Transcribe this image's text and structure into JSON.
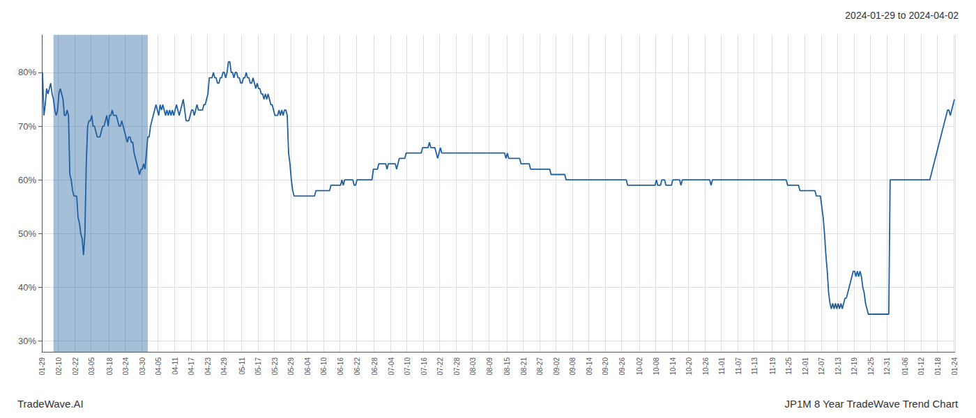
{
  "chart_data": {
    "type": "line",
    "title": "JP1M 8 Year TradeWave Trend Chart",
    "subtitle": "2024-01-29 to 2024-04-02",
    "annotations": [
      "TradeWave.AI"
    ],
    "color": "#2060a0",
    "grid": true,
    "ylim": [
      28,
      87
    ],
    "yticks": [
      {
        "value": 30,
        "label": "30%"
      },
      {
        "value": 40,
        "label": "40%"
      },
      {
        "value": 50,
        "label": "50%"
      },
      {
        "value": 60,
        "label": "60%"
      },
      {
        "value": 70,
        "label": "70%"
      },
      {
        "value": 80,
        "label": "80%"
      }
    ],
    "categories": [
      "01-29",
      null,
      null,
      null,
      null,
      null,
      null,
      null,
      null,
      null,
      null,
      null,
      "02-10",
      null,
      null,
      null,
      null,
      null,
      null,
      null,
      null,
      null,
      null,
      null,
      "02-22",
      null,
      null,
      null,
      null,
      null,
      null,
      null,
      null,
      null,
      null,
      null,
      "03-05",
      null,
      null,
      null,
      null,
      null,
      null,
      null,
      null,
      null,
      null,
      null,
      null,
      "03-18",
      null,
      null,
      null,
      null,
      null,
      null,
      null,
      null,
      null,
      null,
      null,
      "03-24",
      null,
      null,
      null,
      null,
      null,
      null,
      null,
      null,
      null,
      null,
      null,
      "03-30",
      null,
      null,
      null,
      null,
      null,
      null,
      null,
      null,
      null,
      null,
      null,
      "04-05",
      null,
      null,
      null,
      null,
      null,
      null,
      null,
      null,
      null,
      null,
      null,
      "04-11",
      null,
      null,
      null,
      null,
      null,
      null,
      null,
      null,
      null,
      null,
      null,
      "04-17",
      null,
      null,
      null,
      null,
      null,
      null,
      null,
      null,
      null,
      null,
      null,
      "04-23",
      null,
      null,
      null,
      null,
      null,
      null,
      null,
      null,
      null,
      null,
      null,
      "04-29",
      null,
      null,
      null,
      null,
      null,
      null,
      null,
      null,
      null,
      null,
      null,
      null,
      "05-11",
      null,
      null,
      null,
      null,
      null,
      null,
      null,
      null,
      null,
      null,
      null,
      "05-17",
      null,
      null,
      null,
      null,
      null,
      null,
      null,
      null,
      null,
      null,
      null,
      "05-23",
      null,
      null,
      null,
      null,
      null,
      null,
      null,
      null,
      null,
      null,
      null,
      "05-29",
      null,
      null,
      null,
      null,
      null,
      null,
      null,
      null,
      null,
      null,
      null,
      "06-04",
      null,
      null,
      null,
      null,
      null,
      null,
      null,
      null,
      null,
      null,
      null,
      "06-10",
      null,
      null,
      null,
      null,
      null,
      null,
      null,
      null,
      null,
      null,
      null,
      "06-16",
      null,
      null,
      null,
      null,
      null,
      null,
      null,
      null,
      null,
      null,
      null,
      "06-22",
      null,
      null,
      null,
      null,
      null,
      null,
      null,
      null,
      null,
      null,
      null,
      null,
      "06-28",
      null,
      null,
      null,
      null,
      null,
      null,
      null,
      null,
      null,
      null,
      null,
      "07-04",
      null,
      null,
      null,
      null,
      null,
      null,
      null,
      null,
      null,
      null,
      null,
      "07-10",
      null,
      null,
      null,
      null,
      null,
      null,
      null,
      null,
      null,
      null,
      null,
      "07-16",
      null,
      null,
      null,
      null,
      null,
      null,
      null,
      null,
      null,
      null,
      null,
      "07-22",
      null,
      null,
      null,
      null,
      null,
      null,
      null,
      null,
      null,
      null,
      null,
      "07-28",
      null,
      null,
      null,
      null,
      null,
      null,
      null,
      null,
      null,
      null,
      null,
      "08-03",
      null,
      null,
      null,
      null,
      null,
      null,
      null,
      null,
      null,
      null,
      null,
      "08-09",
      null,
      null,
      null,
      null,
      null,
      null,
      null,
      null,
      null,
      null,
      null,
      null,
      "08-15",
      null,
      null,
      null,
      null,
      null,
      null,
      null,
      null,
      null,
      null,
      null,
      "08-21",
      null,
      null,
      null,
      null,
      null,
      null,
      null,
      null,
      null,
      null,
      null,
      "08-27",
      null,
      null,
      null,
      null,
      null,
      null,
      null,
      null,
      null,
      null,
      null,
      "09-02",
      null,
      null,
      null,
      null,
      null,
      null,
      null,
      null,
      null,
      null,
      null,
      "09-08",
      null,
      null,
      null,
      null,
      null,
      null,
      null,
      null,
      null,
      null,
      null,
      "09-14",
      null,
      null,
      null,
      null,
      null,
      null,
      null,
      null,
      null,
      null,
      null,
      "09-20",
      null,
      null,
      null,
      null,
      null,
      null,
      null,
      null,
      null,
      null,
      null,
      "09-26",
      null,
      null,
      null,
      null,
      null,
      null,
      null,
      null,
      null,
      null,
      null,
      null,
      "10-02",
      null,
      null,
      null,
      null,
      null,
      null,
      null,
      null,
      null,
      null,
      null,
      "10-08",
      null,
      null,
      null,
      null,
      null,
      null,
      null,
      null,
      null,
      null,
      null,
      "10-14",
      null,
      null,
      null,
      null,
      null,
      null,
      null,
      null,
      null,
      null,
      null,
      "10-20",
      null,
      null,
      null,
      null,
      null,
      null,
      null,
      null,
      null,
      null,
      null,
      "10-26",
      null,
      null,
      null,
      null,
      null,
      null,
      null,
      null,
      null,
      null,
      null,
      "11-01",
      null,
      null,
      null,
      null,
      null,
      null,
      null,
      null,
      null,
      null,
      null,
      "11-07",
      null,
      null,
      null,
      null,
      null,
      null,
      null,
      null,
      null,
      null,
      null,
      "11-13",
      null,
      null,
      null,
      null,
      null,
      null,
      null,
      null,
      null,
      null,
      null,
      null,
      "11-19",
      null,
      null,
      null,
      null,
      null,
      null,
      null,
      null,
      null,
      null,
      null,
      "11-25",
      null,
      null,
      null,
      null,
      null,
      null,
      null,
      null,
      null,
      null,
      null,
      "12-01",
      null,
      null,
      null,
      null,
      null,
      null,
      null,
      null,
      null,
      null,
      null,
      "12-07",
      null,
      null,
      null,
      null,
      null,
      null,
      null,
      null,
      null,
      null,
      null,
      "12-13",
      null,
      null,
      null,
      null,
      null,
      null,
      null,
      null,
      null,
      null,
      null,
      "12-19",
      null,
      null,
      null,
      null,
      null,
      null,
      null,
      null,
      null,
      null,
      null,
      "12-25",
      null,
      null,
      null,
      null,
      null,
      null,
      null,
      null,
      null,
      null,
      null,
      "12-31",
      null,
      null,
      null,
      null,
      null,
      null,
      null,
      null,
      null,
      null,
      null,
      null,
      "01-06",
      null,
      null,
      null,
      null,
      null,
      null,
      null,
      null,
      null,
      null,
      null,
      "01-12",
      null,
      null,
      null,
      null,
      null,
      null,
      null,
      null,
      null,
      null,
      null,
      "01-18",
      null,
      null,
      null,
      null,
      null,
      null,
      null,
      null,
      null,
      null,
      null,
      "01-24"
    ],
    "values": [
      80,
      72,
      74,
      77,
      76,
      77,
      78,
      76,
      75,
      73,
      72,
      73,
      76,
      77,
      76,
      75,
      72,
      72,
      73,
      72,
      61,
      60,
      58,
      57,
      57,
      57,
      53,
      52,
      50,
      49,
      46,
      50,
      63,
      70,
      71,
      71,
      72,
      70,
      70,
      69,
      68,
      68,
      68,
      69,
      70,
      70,
      71,
      72,
      70,
      72,
      72,
      73,
      72,
      72,
      72,
      71,
      70,
      70,
      71,
      70,
      69,
      68,
      67,
      68,
      68,
      67,
      67,
      65,
      64,
      63,
      62,
      61,
      62,
      62,
      63,
      62,
      65,
      68,
      68,
      70,
      71,
      72,
      73,
      74,
      73,
      72,
      74,
      73,
      74,
      73,
      72,
      73,
      72,
      73,
      72,
      73,
      72,
      73,
      74,
      73,
      72,
      73,
      74,
      75,
      73,
      71,
      71,
      71,
      72,
      73,
      73,
      72,
      73,
      74,
      73,
      73,
      73,
      73,
      74,
      74,
      75,
      76,
      79,
      79,
      79,
      80,
      79,
      79,
      78,
      78,
      79,
      79,
      80,
      80,
      79,
      80,
      82,
      82,
      80,
      80,
      79,
      80,
      80,
      79,
      79,
      78,
      78,
      79,
      79,
      80,
      79,
      79,
      78,
      78,
      79,
      78,
      77,
      78,
      77,
      77,
      76,
      76,
      75,
      76,
      75,
      76,
      75,
      74,
      74,
      73,
      72,
      72,
      72,
      73,
      72,
      73,
      72,
      73,
      73,
      72,
      65,
      63,
      60,
      58,
      57,
      57,
      57,
      57,
      57,
      57,
      57,
      57,
      57,
      57,
      57,
      57,
      57,
      57,
      57,
      57,
      58,
      58,
      58,
      58,
      58,
      58,
      58,
      58,
      58,
      58,
      58,
      59,
      59,
      59,
      59,
      59,
      59,
      59,
      59,
      60,
      59,
      60,
      60,
      60,
      60,
      60,
      60,
      60,
      59,
      59,
      60,
      60,
      60,
      60,
      60,
      60,
      60,
      60,
      60,
      60,
      60,
      60,
      62,
      62,
      62,
      62,
      63,
      63,
      63,
      63,
      63,
      63,
      62,
      63,
      63,
      63,
      63,
      63,
      63,
      62,
      63,
      64,
      64,
      64,
      64,
      64,
      65,
      65,
      65,
      65,
      65,
      65,
      65,
      65,
      65,
      65,
      65,
      65,
      66,
      66,
      66,
      66,
      66,
      67,
      66,
      66,
      66,
      66,
      65,
      64,
      65,
      66,
      65,
      65,
      65,
      65,
      65,
      65,
      65,
      65,
      65,
      65,
      65,
      65,
      65,
      65,
      65,
      65,
      65,
      65,
      65,
      65,
      65,
      65,
      65,
      65,
      65,
      65,
      65,
      65,
      65,
      65,
      65,
      65,
      65,
      65,
      65,
      65,
      65,
      65,
      65,
      65,
      65,
      65,
      65,
      65,
      65,
      65,
      65,
      64,
      65,
      64,
      64,
      64,
      64,
      64,
      64,
      64,
      64,
      64,
      63,
      63,
      63,
      63,
      63,
      63,
      63,
      62,
      62,
      62,
      62,
      62,
      62,
      62,
      62,
      62,
      62,
      62,
      62,
      62,
      62,
      62,
      61,
      61,
      61,
      61,
      61,
      61,
      61,
      61,
      61,
      61,
      61,
      60,
      60,
      60,
      60,
      60,
      60,
      60,
      60,
      60,
      60,
      60,
      60,
      60,
      60,
      60,
      60,
      60,
      60,
      60,
      60,
      60,
      60,
      60,
      60,
      60,
      60,
      60,
      60,
      60,
      60,
      60,
      60,
      60,
      60,
      60,
      60,
      60,
      60,
      60,
      60,
      60,
      60,
      60,
      60,
      60,
      59,
      59,
      59,
      59,
      59,
      59,
      59,
      59,
      59,
      59,
      59,
      59,
      59,
      59,
      59,
      59,
      59,
      59,
      59,
      59,
      59,
      60,
      59,
      59,
      59,
      60,
      60,
      60,
      59,
      59,
      59,
      59,
      59,
      60,
      60,
      60,
      60,
      60,
      60,
      59,
      60,
      60,
      60,
      60,
      60,
      60,
      60,
      60,
      60,
      60,
      60,
      60,
      60,
      60,
      60,
      60,
      60,
      60,
      60,
      60,
      60,
      59,
      60,
      60,
      60,
      60,
      60,
      60,
      60,
      60,
      60,
      60,
      60,
      60,
      60,
      60,
      60,
      60,
      60,
      60,
      60,
      60,
      60,
      60,
      60,
      60,
      60,
      60,
      60,
      60,
      60,
      60,
      60,
      60,
      60,
      60,
      60,
      60,
      60,
      60,
      60,
      60,
      60,
      60,
      60,
      60,
      60,
      60,
      60,
      60,
      60,
      60,
      60,
      60,
      60,
      60,
      60,
      59,
      59,
      59,
      59,
      59,
      59,
      59,
      59,
      59,
      58,
      58,
      58,
      58,
      58,
      58,
      58,
      58,
      58,
      58,
      58,
      58,
      57,
      57,
      57,
      57,
      55,
      53,
      50,
      46,
      43,
      39,
      37,
      36,
      37,
      36,
      37,
      36,
      37,
      36,
      37,
      36,
      37,
      38,
      38,
      39,
      40,
      41,
      42,
      43,
      43,
      42,
      43,
      42,
      43,
      42,
      40,
      39,
      37,
      36,
      35,
      35,
      35,
      35,
      35,
      35,
      35,
      35,
      35,
      35,
      35,
      35,
      35,
      35,
      35,
      35,
      60,
      60,
      60,
      60,
      60,
      60,
      60,
      60,
      60,
      60,
      60,
      60,
      60,
      60,
      60,
      60,
      60,
      60,
      60,
      60,
      60,
      60,
      60,
      60,
      60,
      60,
      60,
      60,
      60,
      60,
      61,
      62,
      63,
      64,
      65,
      66,
      67,
      68,
      69,
      70,
      71,
      72,
      73,
      73,
      72,
      73,
      74,
      75
    ]
  }
}
